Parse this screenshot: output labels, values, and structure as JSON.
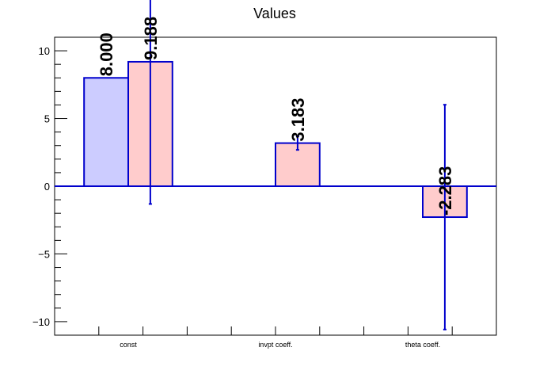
{
  "chart_data": {
    "type": "bar",
    "title": "Values",
    "categories": [
      "const",
      "invpt coeff.",
      "theta coeff."
    ],
    "ylim": [
      -11,
      11
    ],
    "yticks": [
      -10,
      -5,
      0,
      5,
      10
    ],
    "ytick_labels": [
      "−10",
      "−5",
      "0",
      "5",
      "10"
    ],
    "grid": false,
    "series": [
      {
        "fill": "#ccccff",
        "edge": "#0000cc",
        "values": [
          8.0,
          null,
          null
        ],
        "errors": [
          null,
          null,
          null
        ],
        "labels": [
          "8.000",
          "",
          ""
        ]
      },
      {
        "fill": "#ffcccc",
        "edge": "#0000cc",
        "values": [
          9.188,
          3.183,
          -2.283
        ],
        "errors": [
          10.5,
          0.5,
          8.3
        ],
        "labels": [
          "9.188",
          "3.183",
          "-2.283"
        ]
      }
    ]
  }
}
